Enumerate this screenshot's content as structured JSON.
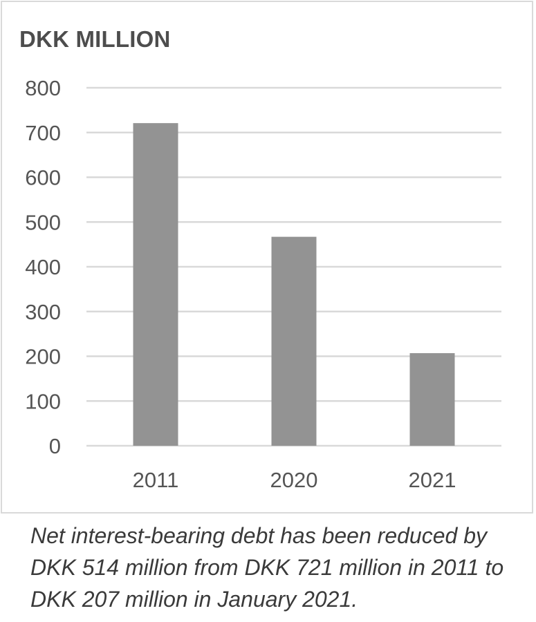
{
  "chart_data": {
    "type": "bar",
    "title": "DKK MILLION",
    "categories": [
      "2011",
      "2020",
      "2021"
    ],
    "values": [
      721,
      467,
      207
    ],
    "ylim": [
      0,
      800
    ],
    "yticks": [
      0,
      100,
      200,
      300,
      400,
      500,
      600,
      700,
      800
    ],
    "xlabel": "",
    "ylabel": "",
    "grid": true,
    "bar_color": "#939393",
    "grid_color": "#d9d9d9"
  },
  "caption": "Net interest-bearing debt has been reduced by DKK 514 million from DKK 721 million in 2011 to DKK 207 million in January 2021."
}
